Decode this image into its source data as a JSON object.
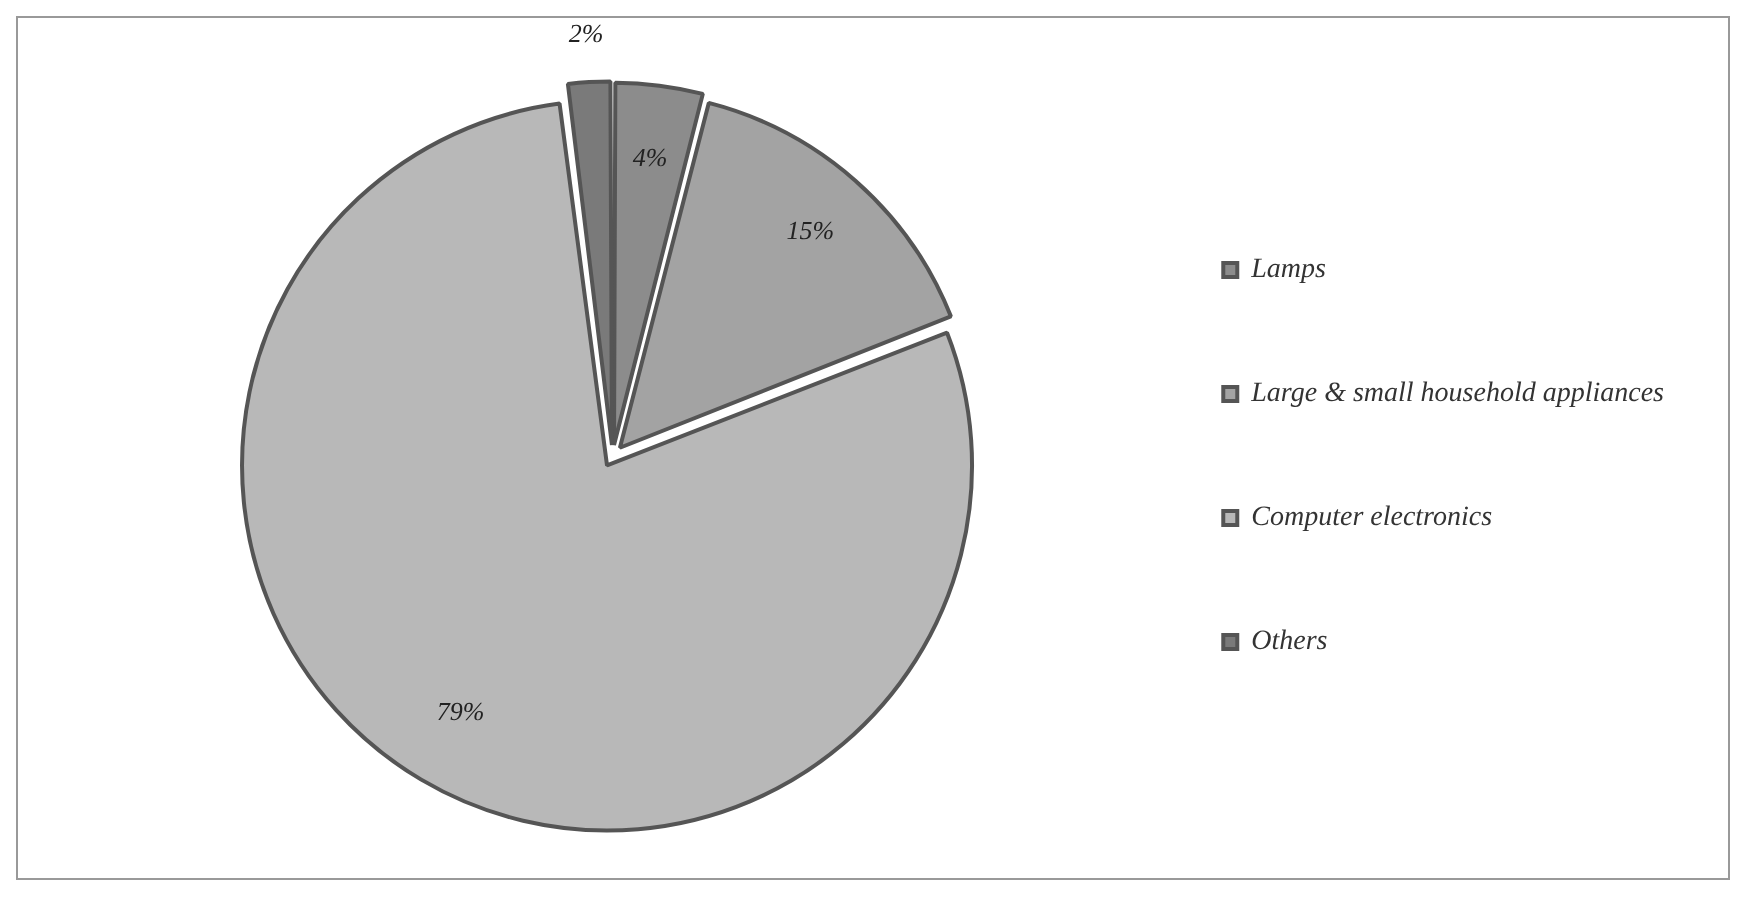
{
  "chart_data": {
    "type": "pie",
    "categories": [
      "Lamps",
      "Large & small household appliances",
      "Computer electronics",
      "Others"
    ],
    "values": [
      4,
      15,
      79,
      2
    ],
    "value_labels": [
      "4%",
      "15%",
      "79%",
      "2%"
    ],
    "colors": [
      "#8c8c8c",
      "#a3a3a3",
      "#b8b8b8",
      "#7a7a7a"
    ],
    "legend": "right"
  }
}
